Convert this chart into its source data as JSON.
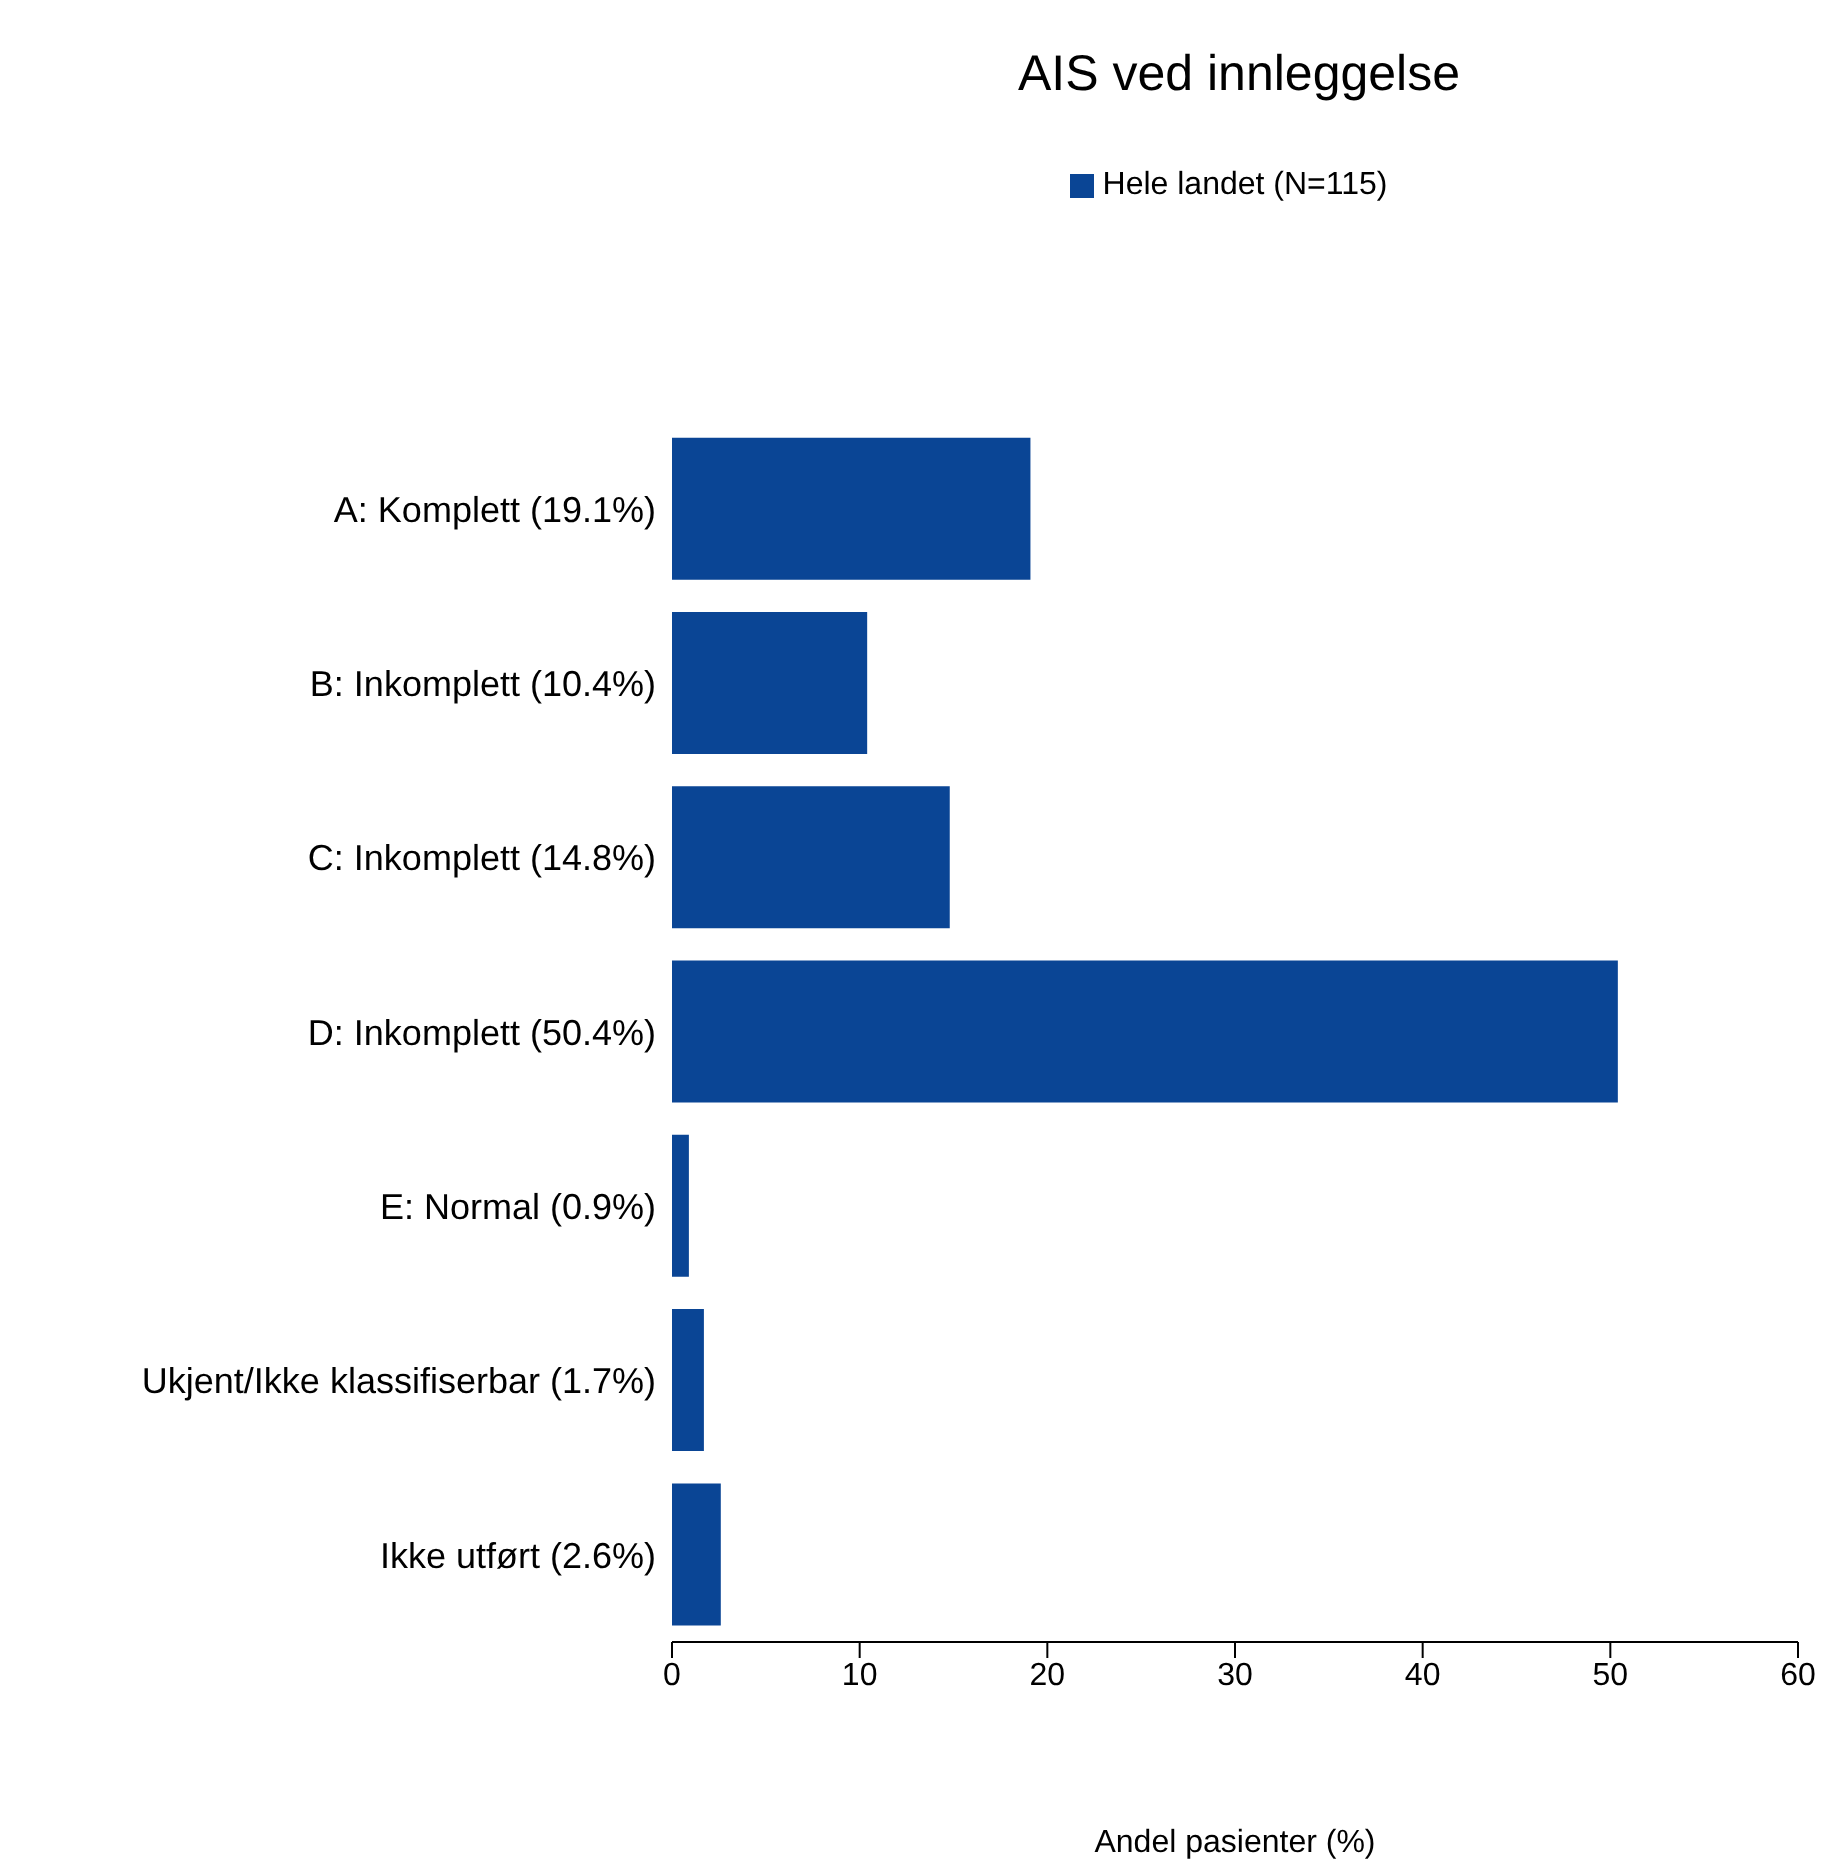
{
  "chart_data": {
    "type": "bar",
    "orientation": "horizontal",
    "title": "AIS ved innleggelse",
    "xlabel": "Andel pasienter (%)",
    "categories": [
      "A: Komplett (19.1%)",
      "B: Inkomplett (10.4%)",
      "C: Inkomplett (14.8%)",
      "D: Inkomplett (50.4%)",
      "E: Normal (0.9%)",
      "Ukjent/Ikke klassifiserbar (1.7%)",
      "Ikke utført (2.6%)"
    ],
    "series": [
      {
        "name": "Hele landet (N=115)",
        "color": "#0a4595",
        "values": [
          19.1,
          10.4,
          14.8,
          50.4,
          0.9,
          1.7,
          2.6
        ]
      }
    ],
    "xlim": [
      0,
      60
    ],
    "xticks": [
      0,
      10,
      20,
      30,
      40,
      50,
      60
    ],
    "legend": "top"
  }
}
